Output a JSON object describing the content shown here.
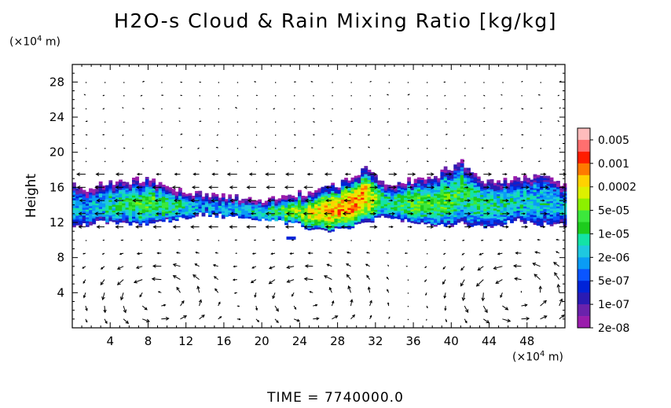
{
  "chart_data": {
    "type": "heatmap",
    "title": "H2O-s Cloud & Rain Mixing Ratio [kg/kg]",
    "xunit_label": "(×10",
    "xunit_exp": "4",
    "xunit_tail": " m)",
    "yunit_label": "(×10",
    "yunit_exp": "4",
    "yunit_tail": " m)",
    "ylabel": "Height",
    "footer": "TIME  =  7740000.0",
    "xlim": [
      0,
      52
    ],
    "ylim": [
      0,
      30
    ],
    "xticks": [
      4,
      8,
      12,
      16,
      20,
      24,
      28,
      32,
      36,
      40,
      44,
      48
    ],
    "yticks": [
      4,
      8,
      12,
      16,
      20,
      24,
      28
    ],
    "colorbar": {
      "labels": [
        "0.005",
        "0.001",
        "0.0002",
        "5e-05",
        "1e-05",
        "2e-06",
        "5e-07",
        "1e-07",
        "2e-08"
      ],
      "colors": [
        "#ffbcbc",
        "#ff6f6f",
        "#ff1d00",
        "#ff7a00",
        "#ffd200",
        "#ddf000",
        "#8cf000",
        "#3ce83c",
        "#1dcc1d",
        "#13e3a6",
        "#1ec8e0",
        "#0a9cf5",
        "#0a55ff",
        "#0023d8",
        "#2a1bb4",
        "#6a22ac",
        "#9a1dac"
      ]
    },
    "cloud_band": [
      {
        "x": 1,
        "bottom": 11.7,
        "top": 15.8,
        "peak": 0.3
      },
      {
        "x": 4,
        "bottom": 12.2,
        "top": 16.3,
        "peak": 0.42
      },
      {
        "x": 8,
        "bottom": 11.8,
        "top": 16.8,
        "peak": 0.55
      },
      {
        "x": 11,
        "bottom": 12.5,
        "top": 15.7,
        "peak": 0.45
      },
      {
        "x": 14,
        "bottom": 13.0,
        "top": 15.2,
        "peak": 0.32
      },
      {
        "x": 17,
        "bottom": 12.6,
        "top": 14.9,
        "peak": 0.35
      },
      {
        "x": 20,
        "bottom": 12.3,
        "top": 14.6,
        "peak": 0.4
      },
      {
        "x": 23,
        "bottom": 12.0,
        "top": 14.8,
        "peak": 0.58
      },
      {
        "x": 26,
        "bottom": 11.0,
        "top": 15.6,
        "peak": 0.72
      },
      {
        "x": 29,
        "bottom": 11.2,
        "top": 16.6,
        "peak": 0.82
      },
      {
        "x": 31,
        "bottom": 12.0,
        "top": 18.2,
        "peak": 0.78
      },
      {
        "x": 33,
        "bottom": 12.8,
        "top": 16.2,
        "peak": 0.45
      },
      {
        "x": 36,
        "bottom": 12.0,
        "top": 16.6,
        "peak": 0.55
      },
      {
        "x": 39,
        "bottom": 11.6,
        "top": 17.5,
        "peak": 0.55
      },
      {
        "x": 41,
        "bottom": 11.9,
        "top": 19.0,
        "peak": 0.5
      },
      {
        "x": 44,
        "bottom": 11.6,
        "top": 16.4,
        "peak": 0.45
      },
      {
        "x": 47,
        "bottom": 12.3,
        "top": 16.8,
        "peak": 0.4
      },
      {
        "x": 50,
        "bottom": 11.8,
        "top": 17.6,
        "peak": 0.38
      },
      {
        "x": 52,
        "bottom": 11.8,
        "top": 16.0,
        "peak": 0.35
      }
    ],
    "wind_vectors": {
      "x_step": 2,
      "y_step": 1.5,
      "circulation_centers": [
        {
          "x": 9,
          "y": 3.5,
          "strength": 1.0
        },
        {
          "x": 25,
          "y": 3.5,
          "strength": 0.9
        },
        {
          "x": 47,
          "y": 4.0,
          "strength": 1.1
        }
      ]
    }
  }
}
